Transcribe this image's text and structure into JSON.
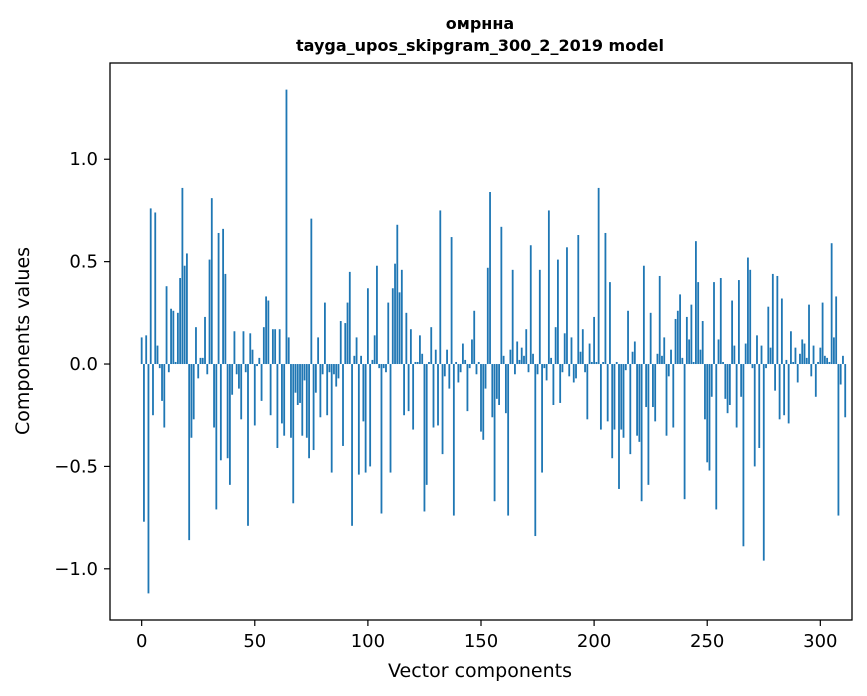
{
  "chart_data": {
    "type": "bar",
    "title": "омрнна",
    "subtitle": "tayga_upos_skipgram_300_2_2019 model",
    "xlabel": "Vector components",
    "ylabel": "Components values",
    "xlim": [
      -14,
      314
    ],
    "ylim": [
      -1.25,
      1.47
    ],
    "xticks": [
      0,
      50,
      100,
      150,
      200,
      250,
      300
    ],
    "xtick_labels": [
      "0",
      "50",
      "100",
      "150",
      "200",
      "250",
      "300"
    ],
    "yticks": [
      -1.0,
      -0.5,
      0.0,
      0.5,
      1.0
    ],
    "ytick_labels": [
      "−1.0",
      "−0.5",
      "0.0",
      "0.5",
      "1.0"
    ],
    "grid": false,
    "color": "#1f77b4",
    "x_start": 0,
    "values": [
      0.13,
      -0.77,
      0.14,
      -1.12,
      0.76,
      -0.25,
      0.74,
      0.09,
      -0.02,
      -0.18,
      -0.31,
      0.38,
      -0.04,
      0.27,
      0.26,
      0.01,
      0.25,
      0.42,
      0.86,
      0.48,
      0.54,
      -0.86,
      -0.36,
      -0.27,
      0.18,
      -0.07,
      0.03,
      0.03,
      0.23,
      -0.05,
      0.51,
      0.81,
      -0.31,
      -0.71,
      0.64,
      -0.47,
      0.66,
      0.44,
      -0.46,
      -0.59,
      -0.15,
      0.16,
      -0.05,
      -0.12,
      -0.27,
      0.16,
      -0.04,
      -0.79,
      0.15,
      0.07,
      -0.3,
      -0.01,
      0.03,
      -0.18,
      0.18,
      0.33,
      0.31,
      -0.25,
      0.17,
      0.17,
      -0.41,
      0.17,
      -0.29,
      -0.35,
      1.34,
      0.13,
      -0.36,
      -0.68,
      -0.14,
      -0.2,
      -0.19,
      -0.35,
      -0.08,
      -0.36,
      -0.46,
      0.71,
      -0.42,
      -0.14,
      0.13,
      -0.26,
      -0.05,
      0.3,
      -0.25,
      -0.04,
      -0.53,
      -0.05,
      -0.11,
      -0.07,
      0.21,
      -0.4,
      0.2,
      0.3,
      0.45,
      -0.79,
      0.04,
      0.13,
      -0.54,
      0.04,
      -0.28,
      -0.53,
      0.37,
      -0.5,
      0.02,
      0.14,
      0.48,
      -0.02,
      -0.73,
      -0.02,
      -0.04,
      0.3,
      -0.53,
      0.37,
      0.49,
      0.68,
      0.35,
      0.46,
      -0.25,
      0.25,
      -0.23,
      0.17,
      -0.32,
      0.01,
      0.01,
      0.14,
      0.05,
      -0.72,
      -0.59,
      0.01,
      0.18,
      -0.31,
      0.07,
      -0.3,
      0.75,
      -0.44,
      -0.06,
      0.07,
      -0.12,
      0.62,
      -0.74,
      0.01,
      -0.09,
      -0.04,
      0.1,
      0.02,
      -0.23,
      -0.02,
      0.12,
      0.26,
      -0.05,
      0.01,
      -0.33,
      -0.37,
      -0.12,
      0.47,
      0.84,
      -0.26,
      -0.67,
      -0.17,
      -0.2,
      0.67,
      0.04,
      -0.24,
      -0.74,
      0.07,
      0.46,
      -0.05,
      0.11,
      0.02,
      0.08,
      0.04,
      0.17,
      -0.04,
      0.58,
      0.05,
      -0.84,
      -0.05,
      0.46,
      -0.53,
      -0.02,
      -0.08,
      0.75,
      0.03,
      -0.2,
      0.18,
      0.51,
      -0.19,
      -0.04,
      0.15,
      0.57,
      -0.06,
      0.13,
      -0.09,
      -0.07,
      0.63,
      0.06,
      0.17,
      -0.04,
      -0.27,
      0.1,
      0.01,
      0.23,
      0.01,
      0.86,
      -0.32,
      0.01,
      0.64,
      -0.28,
      0.4,
      -0.46,
      -0.32,
      0.01,
      -0.61,
      -0.32,
      -0.36,
      -0.03,
      0.26,
      -0.44,
      0.06,
      0.11,
      -0.35,
      -0.38,
      -0.67,
      0.48,
      -0.21,
      -0.59,
      0.25,
      -0.21,
      -0.28,
      0.05,
      0.43,
      0.04,
      0.13,
      -0.35,
      -0.06,
      0.07,
      -0.31,
      0.22,
      0.26,
      0.34,
      0.03,
      -0.66,
      0.23,
      0.12,
      0.29,
      0.01,
      0.6,
      0.4,
      0.07,
      0.21,
      -0.27,
      -0.48,
      -0.52,
      -0.16,
      0.4,
      -0.71,
      0.12,
      0.42,
      0.01,
      -0.17,
      -0.24,
      -0.2,
      0.31,
      0.09,
      -0.31,
      0.41,
      -0.16,
      -0.89,
      0.1,
      0.52,
      0.46,
      -0.02,
      -0.5,
      0.14,
      -0.41,
      0.09,
      -0.96,
      -0.02,
      0.28,
      0.08,
      0.44,
      -0.13,
      0.43,
      -0.27,
      0.32,
      -0.25,
      0.02,
      -0.29,
      0.16,
      0.01,
      0.08,
      -0.09,
      0.05,
      0.12,
      0.1,
      0.03,
      0.29,
      -0.06,
      0.09,
      -0.16,
      0.01,
      0.08,
      0.3,
      0.04,
      0.03,
      0.01,
      0.59,
      0.13,
      0.33,
      -0.74,
      -0.1,
      0.04,
      -0.26
    ]
  }
}
